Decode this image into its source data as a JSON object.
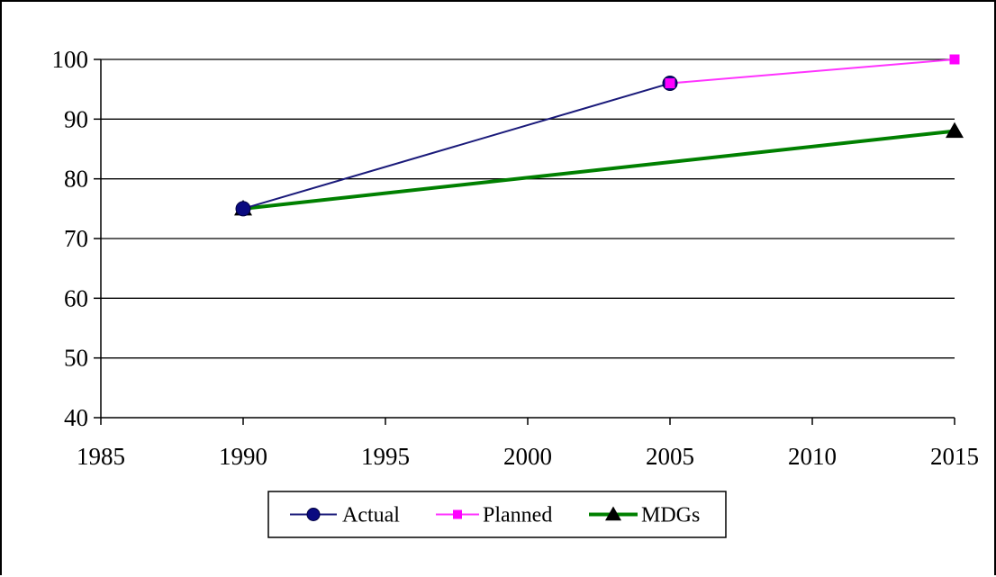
{
  "chart_data": {
    "type": "line",
    "xlim": [
      1985,
      2015
    ],
    "ylim": [
      40,
      100
    ],
    "xticks": [
      1985,
      1990,
      1995,
      2000,
      2005,
      2010,
      2015
    ],
    "yticks": [
      40,
      50,
      60,
      70,
      80,
      90,
      100
    ],
    "grid": {
      "horizontal": true,
      "vertical": false
    },
    "legend_position": "bottom-center",
    "series": [
      {
        "name": "Actual",
        "color": "#1a1a7a",
        "marker": "circle",
        "marker_color": "#0a0a80",
        "points": [
          {
            "x": 1990,
            "y": 75
          },
          {
            "x": 2005,
            "y": 96
          }
        ]
      },
      {
        "name": "Planned",
        "color": "#ff33ff",
        "marker": "square",
        "marker_color": "#ff00ff",
        "points": [
          {
            "x": 2005,
            "y": 96
          },
          {
            "x": 2015,
            "y": 100
          }
        ]
      },
      {
        "name": "MDGs",
        "color": "#008000",
        "marker": "triangle",
        "marker_color": "#000000",
        "points": [
          {
            "x": 1990,
            "y": 75
          },
          {
            "x": 2015,
            "y": 88
          }
        ]
      }
    ]
  }
}
